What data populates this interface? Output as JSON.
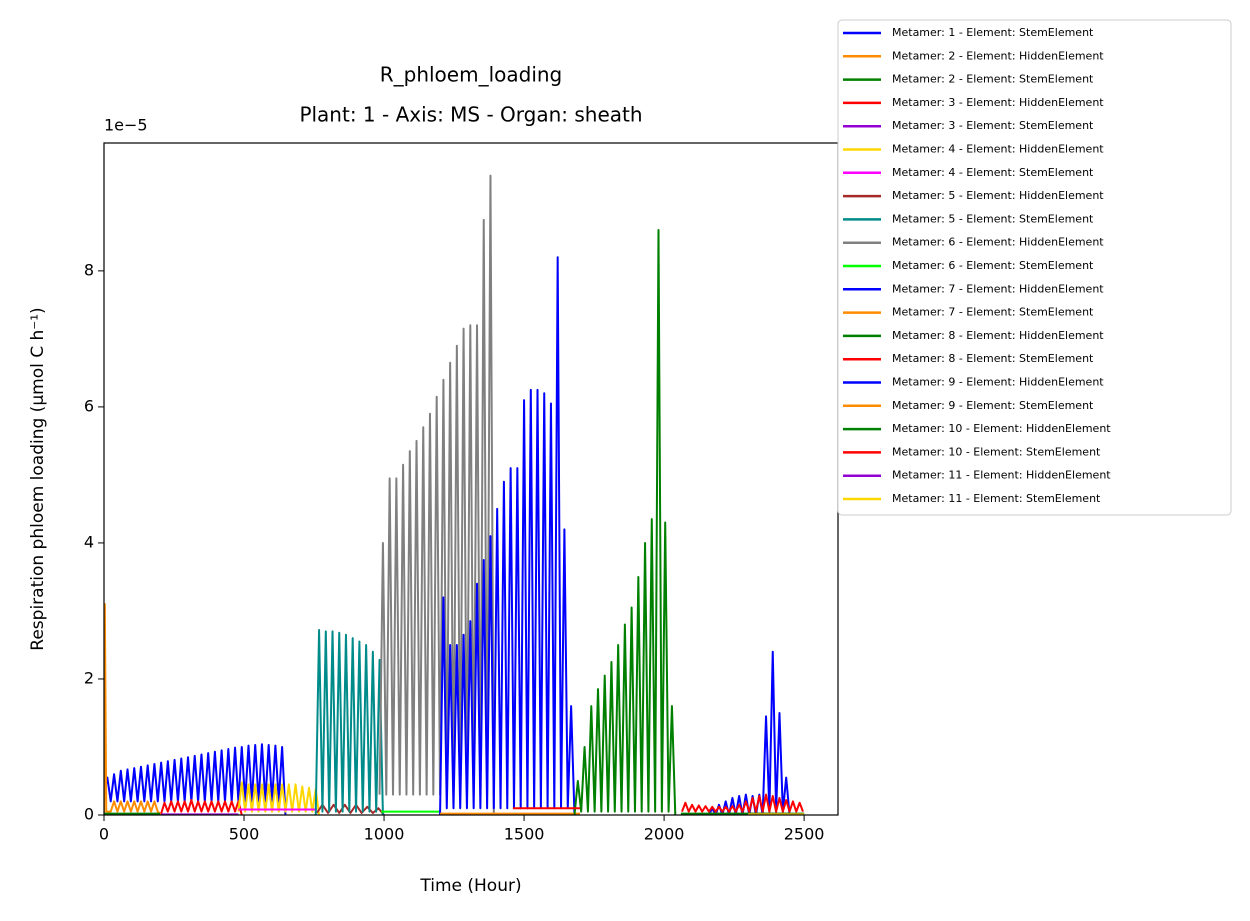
{
  "chart_data": {
    "type": "line",
    "title": "R_phloem_loading",
    "subtitle": "Plant: 1 - Axis: MS - Organ: sheath",
    "x_label": "Time (Hour)",
    "y_label": "Respiration phloem loading (µmol C h⁻¹)",
    "y_offset_label": "1e−5",
    "xlim": [
      0,
      2621
    ],
    "ylim": [
      0,
      9.88
    ],
    "xticks": [
      0,
      500,
      1000,
      1500,
      2000,
      2500
    ],
    "yticks": [
      0,
      2,
      4,
      6,
      8
    ],
    "legend": "outside-upper-right",
    "series": [
      {
        "name": "Metamer: 1 - Element: StemElement",
        "color": "#0000ff",
        "x": [
          0,
          12,
          24,
          36,
          48,
          60,
          72,
          84,
          96,
          108,
          120,
          132,
          144,
          156,
          168,
          180,
          192,
          204,
          216,
          228,
          240,
          252,
          264,
          276,
          288,
          300,
          312,
          324,
          336,
          348,
          360,
          372,
          384,
          396,
          408,
          420,
          432,
          444,
          456,
          468,
          480,
          492,
          504,
          516,
          528,
          540,
          552,
          564,
          576,
          588,
          600,
          612,
          624,
          636,
          648
        ],
        "values": [
          0.3,
          0.55,
          0.2,
          0.6,
          0.2,
          0.65,
          0.2,
          0.67,
          0.2,
          0.69,
          0.2,
          0.71,
          0.2,
          0.73,
          0.2,
          0.75,
          0.2,
          0.77,
          0.2,
          0.79,
          0.2,
          0.81,
          0.2,
          0.83,
          0.2,
          0.85,
          0.2,
          0.87,
          0.2,
          0.89,
          0.2,
          0.91,
          0.2,
          0.93,
          0.2,
          0.95,
          0.2,
          0.97,
          0.2,
          0.99,
          0.2,
          1.0,
          0.2,
          1.02,
          0.2,
          1.03,
          0.2,
          1.04,
          0.2,
          1.03,
          0.2,
          1.02,
          0.2,
          1.0,
          0
        ]
      },
      {
        "name": "Metamer: 2 - Element: HiddenElement",
        "color": "#ff8c00",
        "x": [
          0,
          3,
          8,
          24,
          36,
          48,
          60,
          72,
          84,
          96,
          108,
          120,
          132,
          144,
          156,
          168,
          180,
          192,
          204
        ],
        "values": [
          0,
          3.1,
          0.05,
          0.05,
          0.2,
          0.05,
          0.2,
          0.05,
          0.2,
          0.05,
          0.2,
          0.05,
          0.2,
          0.05,
          0.2,
          0.05,
          0.2,
          0.05,
          0
        ]
      },
      {
        "name": "Metamer: 2 - Element: StemElement",
        "color": "#008000",
        "x": [
          0,
          200
        ],
        "values": [
          0.02,
          0.02
        ]
      },
      {
        "name": "Metamer: 3 - Element: HiddenElement",
        "color": "#ff0000",
        "x": [
          204,
          216,
          228,
          240,
          252,
          264,
          276,
          288,
          300,
          312,
          324,
          336,
          348,
          360,
          372,
          384,
          396,
          408,
          420,
          432,
          444,
          456,
          468,
          480,
          492
        ],
        "values": [
          0.02,
          0.18,
          0.05,
          0.2,
          0.05,
          0.2,
          0.05,
          0.2,
          0.05,
          0.22,
          0.05,
          0.2,
          0.05,
          0.2,
          0.05,
          0.2,
          0.05,
          0.2,
          0.05,
          0.2,
          0.05,
          0.2,
          0.05,
          0.2,
          0
        ]
      },
      {
        "name": "Metamer: 3 - Element: StemElement",
        "color": "#9400d3",
        "x": [
          204,
          480
        ],
        "values": [
          0.01,
          0.01
        ]
      },
      {
        "name": "Metamer: 4 - Element: HiddenElement",
        "color": "#ffd700",
        "x": [
          480,
          492,
          504,
          516,
          528,
          540,
          552,
          564,
          576,
          588,
          600,
          612,
          624,
          636,
          648,
          660,
          672,
          684,
          696,
          708,
          720,
          732,
          744,
          756,
          768
        ],
        "values": [
          0.05,
          0.48,
          0.05,
          0.45,
          0.05,
          0.45,
          0.05,
          0.45,
          0.05,
          0.45,
          0.05,
          0.45,
          0.05,
          0.45,
          0.05,
          0.45,
          0.05,
          0.45,
          0.05,
          0.42,
          0.05,
          0.4,
          0.05,
          0.38,
          0
        ]
      },
      {
        "name": "Metamer: 4 - Element: StemElement",
        "color": "#ff00ff",
        "x": [
          480,
          760
        ],
        "values": [
          0.08,
          0.08
        ]
      },
      {
        "name": "Metamer: 5 - Element: HiddenElement",
        "color": "#a52a2a",
        "x": [
          760,
          780,
          800,
          820,
          840,
          860,
          880,
          900,
          920,
          940,
          960,
          980,
          1000
        ],
        "values": [
          0.03,
          0.15,
          0.03,
          0.15,
          0.03,
          0.15,
          0.03,
          0.15,
          0.03,
          0.12,
          0.03,
          0.1,
          0
        ]
      },
      {
        "name": "Metamer: 5 - Element: StemElement",
        "color": "#008b8b",
        "x": [
          756,
          768,
          780,
          792,
          804,
          816,
          828,
          840,
          852,
          864,
          876,
          888,
          900,
          912,
          924,
          936,
          948,
          960,
          972,
          984,
          996
        ],
        "values": [
          0,
          2.72,
          0.05,
          2.7,
          0.05,
          2.7,
          0.05,
          2.68,
          0.05,
          2.65,
          0.05,
          2.6,
          0.05,
          2.55,
          0.05,
          2.5,
          0.05,
          2.4,
          0.05,
          2.28,
          0
        ]
      },
      {
        "name": "Metamer: 6 - Element: HiddenElement",
        "color": "#808080",
        "x": [
          984,
          996,
          1008,
          1020,
          1032,
          1044,
          1056,
          1068,
          1080,
          1092,
          1104,
          1116,
          1128,
          1140,
          1152,
          1164,
          1176,
          1188,
          1200,
          1212,
          1224,
          1236,
          1248,
          1260,
          1272,
          1284,
          1296,
          1308,
          1320,
          1332,
          1344,
          1356,
          1368,
          1380,
          1392
        ],
        "values": [
          0.3,
          4.0,
          0.3,
          4.95,
          0.3,
          4.95,
          0.3,
          5.15,
          0.3,
          5.35,
          0.3,
          5.5,
          0.3,
          5.7,
          0.3,
          5.9,
          0.3,
          6.15,
          0.3,
          6.4,
          0.3,
          6.65,
          0.3,
          6.9,
          0.3,
          7.15,
          0.3,
          7.2,
          0.3,
          7.2,
          0.3,
          8.75,
          0.3,
          9.4,
          0
        ]
      },
      {
        "name": "Metamer: 6 - Element: StemElement",
        "color": "#00ff00",
        "x": [
          990,
          1200
        ],
        "values": [
          0.05,
          0.05
        ]
      },
      {
        "name": "Metamer: 7 - Element: HiddenElement",
        "color": "#0000ff",
        "x": [
          1200,
          1212,
          1224,
          1236,
          1248,
          1260,
          1272,
          1284,
          1296,
          1308,
          1320,
          1332,
          1344,
          1356,
          1368,
          1380,
          1392,
          1404,
          1416,
          1428,
          1440,
          1452,
          1464,
          1476,
          1488,
          1500,
          1512,
          1524,
          1536,
          1548,
          1560,
          1572,
          1584,
          1596,
          1608,
          1620,
          1632,
          1644,
          1656,
          1668,
          1680
        ],
        "values": [
          0,
          3.2,
          0.1,
          2.5,
          0.1,
          2.5,
          0.1,
          2.65,
          0.1,
          2.85,
          0.1,
          3.4,
          0.1,
          3.75,
          0.1,
          4.1,
          0.1,
          4.5,
          0.1,
          4.9,
          0.1,
          5.1,
          0.1,
          5.1,
          0.1,
          6.1,
          0.1,
          6.25,
          0.1,
          6.25,
          0.1,
          6.2,
          0.1,
          6.05,
          0.1,
          8.2,
          0.1,
          4.2,
          0.1,
          1.6,
          0
        ]
      },
      {
        "name": "Metamer: 7 - Element: StemElement",
        "color": "#ff8c00",
        "x": [
          1200,
          1700
        ],
        "values": [
          0.02,
          0.02
        ]
      },
      {
        "name": "Metamer: 8 - Element: HiddenElement",
        "color": "#008000",
        "x": [
          1680,
          1692,
          1704,
          1716,
          1728,
          1740,
          1752,
          1764,
          1776,
          1788,
          1800,
          1812,
          1824,
          1836,
          1848,
          1860,
          1872,
          1884,
          1896,
          1908,
          1920,
          1932,
          1944,
          1956,
          1968,
          1980,
          1992,
          2004,
          2016,
          2028,
          2040
        ],
        "values": [
          0,
          0.5,
          0.05,
          1.0,
          0.05,
          1.6,
          0.05,
          1.85,
          0.05,
          2.05,
          0.05,
          2.25,
          0.05,
          2.5,
          0.05,
          2.8,
          0.05,
          3.05,
          0.05,
          3.5,
          0.05,
          4.0,
          0.05,
          4.35,
          0.05,
          8.6,
          0.05,
          4.3,
          0.05,
          1.6,
          0
        ]
      },
      {
        "name": "Metamer: 8 - Element: StemElement",
        "color": "#ff0000",
        "x": [
          1460,
          1700
        ],
        "values": [
          0.1,
          0.1
        ]
      },
      {
        "name": "Metamer: 9 - Element: HiddenElement",
        "color": "#0000ff",
        "x": [
          2160,
          2172,
          2184,
          2196,
          2208,
          2220,
          2232,
          2244,
          2256,
          2268,
          2280,
          2292,
          2304,
          2316,
          2328,
          2340,
          2352,
          2364,
          2376,
          2388,
          2400,
          2412,
          2424,
          2436,
          2448
        ],
        "values": [
          0,
          0.1,
          0,
          0.15,
          0,
          0.2,
          0,
          0.25,
          0,
          0.28,
          0,
          0.3,
          0,
          0.28,
          0,
          0.3,
          0,
          1.45,
          0.05,
          2.4,
          0.05,
          1.5,
          0.05,
          0.55,
          0
        ]
      },
      {
        "name": "Metamer: 9 - Element: StemElement",
        "color": "#ff8c00",
        "x": [
          2160,
          2450
        ],
        "values": [
          0.02,
          0.02
        ]
      },
      {
        "name": "Metamer: 10 - Element: HiddenElement",
        "color": "#008000",
        "x": [
          2060,
          2500
        ],
        "values": [
          0.02,
          0.02
        ]
      },
      {
        "name": "Metamer: 10 - Element: StemElement",
        "color": "#ff0000",
        "x": [
          2064,
          2076,
          2088,
          2100,
          2112,
          2124,
          2136,
          2148,
          2160,
          2172,
          2184,
          2196,
          2208,
          2220,
          2232,
          2244,
          2256,
          2268,
          2280,
          2292,
          2304,
          2316,
          2328,
          2340,
          2352,
          2364,
          2376,
          2388,
          2400,
          2412,
          2424,
          2436,
          2448,
          2460,
          2472,
          2484,
          2496
        ],
        "values": [
          0.05,
          0.18,
          0.05,
          0.15,
          0.05,
          0.14,
          0.05,
          0.13,
          0.05,
          0.12,
          0.05,
          0.12,
          0.05,
          0.12,
          0.05,
          0.13,
          0.05,
          0.15,
          0.05,
          0.2,
          0.05,
          0.25,
          0.05,
          0.28,
          0.05,
          0.3,
          0.05,
          0.28,
          0.05,
          0.25,
          0.05,
          0.22,
          0.05,
          0.2,
          0.05,
          0.18,
          0.05
        ]
      },
      {
        "name": "Metamer: 11 - Element: HiddenElement",
        "color": "#9400d3",
        "x": [
          2300,
          2500
        ],
        "values": [
          0.01,
          0.01
        ]
      },
      {
        "name": "Metamer: 11 - Element: StemElement",
        "color": "#ffd700",
        "x": [
          2300,
          2500
        ],
        "values": [
          0.01,
          0.01
        ]
      }
    ]
  }
}
